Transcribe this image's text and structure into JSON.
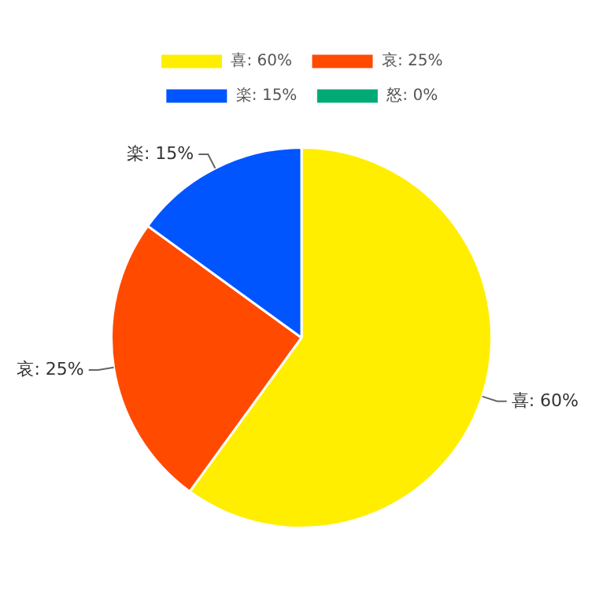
{
  "chart_data": {
    "type": "pie",
    "categories": [
      "喜: 60%",
      "哀: 25%",
      "楽: 15%",
      "怒: 0%"
    ],
    "values": [
      60,
      25,
      15,
      0
    ],
    "colors": [
      "#ffee00",
      "#ff4a00",
      "#0055ff",
      "#00aa77"
    ],
    "legend": "top"
  }
}
